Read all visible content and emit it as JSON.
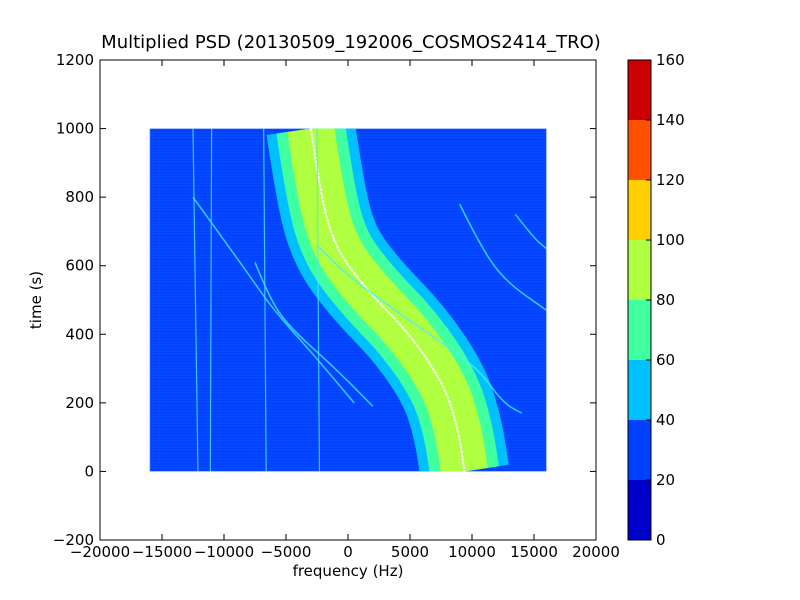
{
  "chart_data": {
    "type": "heatmap",
    "title": "Multiplied PSD (20130509_192006_COSMOS2414_TRO)",
    "xlabel": "frequency (Hz)",
    "ylabel": "time (s)",
    "xlim": [
      -20000,
      20000
    ],
    "ylim": [
      -200,
      1200
    ],
    "xticks": [
      -20000,
      -15000,
      -10000,
      -5000,
      0,
      5000,
      10000,
      15000,
      20000
    ],
    "xtick_labels": [
      "−20000",
      "−15000",
      "−10000",
      "−5000",
      "0",
      "5000",
      "10000",
      "15000",
      "20000"
    ],
    "yticks": [
      -200,
      0,
      200,
      400,
      600,
      800,
      1000,
      1200
    ],
    "ytick_labels": [
      "−200",
      "0",
      "200",
      "400",
      "600",
      "800",
      "1000",
      "1200"
    ],
    "data_extent": {
      "x": [
        -16000,
        16000
      ],
      "y": [
        0,
        1000
      ]
    },
    "background_level": 25,
    "colorbar": {
      "min": 0,
      "max": 160,
      "levels": [
        0,
        20,
        40,
        60,
        80,
        100,
        120,
        140,
        160
      ],
      "tick_labels": [
        "0",
        "20",
        "40",
        "60",
        "80",
        "100",
        "120",
        "140",
        "160"
      ],
      "colors": [
        "#0000cc",
        "#0040ff",
        "#00c0ff",
        "#40ffa0",
        "#b0ff40",
        "#ffd000",
        "#ff5000",
        "#cc0000"
      ]
    },
    "main_band": {
      "description_free_fields_only": true,
      "center_track": [
        [
          -3000,
          1000
        ],
        [
          -2200,
          800
        ],
        [
          -1000,
          650
        ],
        [
          1500,
          530
        ],
        [
          5000,
          400
        ],
        [
          7800,
          250
        ],
        [
          8900,
          120
        ],
        [
          9400,
          0
        ]
      ],
      "half_width_hz": [
        [
          1000,
          3600
        ],
        [
          0,
          2900
        ]
      ]
    },
    "faint_tracks": [
      [
        [
          -12500,
          800
        ],
        [
          -8500,
          600
        ],
        [
          -6000,
          470
        ],
        [
          -3000,
          350
        ],
        [
          500,
          200
        ]
      ],
      [
        [
          -7500,
          610
        ],
        [
          -6500,
          520
        ],
        [
          -5000,
          430
        ],
        [
          -1000,
          300
        ],
        [
          2000,
          190
        ]
      ],
      [
        [
          -2500,
          660
        ],
        [
          -1000,
          600
        ],
        [
          3000,
          490
        ],
        [
          7000,
          390
        ],
        [
          10500,
          300
        ],
        [
          12500,
          200
        ],
        [
          14000,
          170
        ]
      ],
      [
        [
          9000,
          780
        ],
        [
          10500,
          670
        ],
        [
          12500,
          560
        ],
        [
          16000,
          470
        ]
      ],
      [
        [
          13500,
          750
        ],
        [
          15000,
          680
        ],
        [
          16000,
          650
        ]
      ]
    ],
    "vertical_lines": [
      [
        [
          -16000,
          1000
        ],
        [
          -16000,
          0
        ]
      ],
      [
        [
          -12500,
          1000
        ],
        [
          -12100,
          0
        ]
      ],
      [
        [
          -11000,
          1000
        ],
        [
          -11100,
          0
        ]
      ],
      [
        [
          -6800,
          1000
        ],
        [
          -6600,
          0
        ]
      ],
      [
        [
          -2500,
          1000
        ],
        [
          -2300,
          0
        ]
      ]
    ]
  }
}
